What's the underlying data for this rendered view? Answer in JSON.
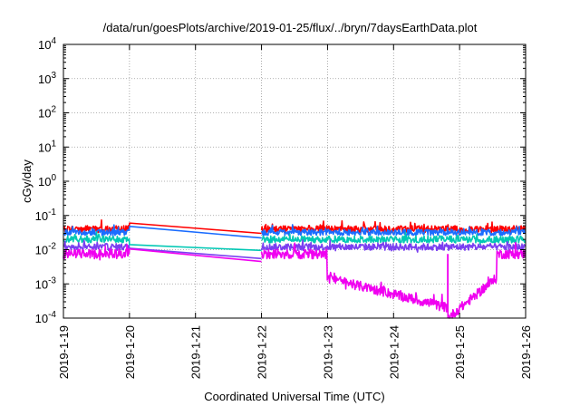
{
  "chart_data": {
    "type": "line",
    "title": "/data/run/goesPlots/archive/2019-01-25/flux/../bryn/7daysEarthData.plot",
    "xlabel": "Coordinated Universal Time (UTC)",
    "ylabel": "cGy/day",
    "yscale": "log",
    "ylim": [
      0.0001,
      10000
    ],
    "xlim": [
      "2019-1-19",
      "2019-1-26"
    ],
    "grid": true,
    "legend": "none",
    "x_ticks": [
      "2019-1-19",
      "2019-1-20",
      "2019-1-21",
      "2019-1-22",
      "2019-1-23",
      "2019-1-24",
      "2019-1-25",
      "2019-1-26"
    ],
    "y_ticks": [
      {
        "base": "10",
        "exp": "-4",
        "value": 0.0001
      },
      {
        "base": "10",
        "exp": "-3",
        "value": 0.001
      },
      {
        "base": "10",
        "exp": "-2",
        "value": 0.01
      },
      {
        "base": "10",
        "exp": "-1",
        "value": 0.1
      },
      {
        "base": "10",
        "exp": "0",
        "value": 1
      },
      {
        "base": "10",
        "exp": "1",
        "value": 10
      },
      {
        "base": "10",
        "exp": "2",
        "value": 100
      },
      {
        "base": "10",
        "exp": "3",
        "value": 1000
      },
      {
        "base": "10",
        "exp": "4",
        "value": 10000
      }
    ],
    "gap": {
      "start": "2019-1-20 00:00",
      "end": "2019-1-22 00:00"
    },
    "series": [
      {
        "color": "#ff0000",
        "typical": 0.04,
        "jitter": 0.1,
        "points": [
          [
            "2019-1-19 00:00",
            0.045
          ],
          [
            "2019-1-19 21:00",
            0.042
          ],
          [
            "2019-1-20 00:00",
            0.06
          ],
          [
            "2019-1-22 00:00",
            0.03
          ],
          [
            "2019-1-26 00:00",
            0.045
          ]
        ]
      },
      {
        "color": "#1a6cff",
        "typical": 0.032,
        "jitter": 0.09,
        "points": [
          [
            "2019-1-19 00:00",
            0.034
          ],
          [
            "2019-1-19 21:00",
            0.033
          ],
          [
            "2019-1-20 00:00",
            0.048
          ],
          [
            "2019-1-22 00:00",
            0.022
          ],
          [
            "2019-1-26 00:00",
            0.032
          ]
        ]
      },
      {
        "color": "#00c8b4",
        "typical": 0.02,
        "jitter": 0.1,
        "points": [
          [
            "2019-1-19 00:00",
            0.02
          ],
          [
            "2019-1-20 00:00",
            0.014
          ],
          [
            "2019-1-22 00:00",
            0.0095
          ],
          [
            "2019-1-26 00:00",
            0.02
          ]
        ]
      },
      {
        "color": "#7a3ff0",
        "typical": 0.012,
        "jitter": 0.1,
        "points": [
          [
            "2019-1-19 00:00",
            0.012
          ],
          [
            "2019-1-20 00:00",
            0.011
          ],
          [
            "2019-1-22 00:00",
            0.0055
          ],
          [
            "2019-1-26 00:00",
            0.012
          ]
        ]
      },
      {
        "color": "#f000f0",
        "typical": 0.0075,
        "jitter": 0.14,
        "points": [
          [
            "2019-1-19 00:00",
            0.0075
          ],
          [
            "2019-1-20 00:00",
            0.0105
          ],
          [
            "2019-1-22 00:00",
            0.0045
          ],
          [
            "2019-1-24 19:40",
            0.0002
          ],
          [
            "2019-1-24 19:45",
            0.0001
          ],
          [
            "2019-1-26 00:00",
            0.0075
          ]
        ]
      }
    ]
  }
}
